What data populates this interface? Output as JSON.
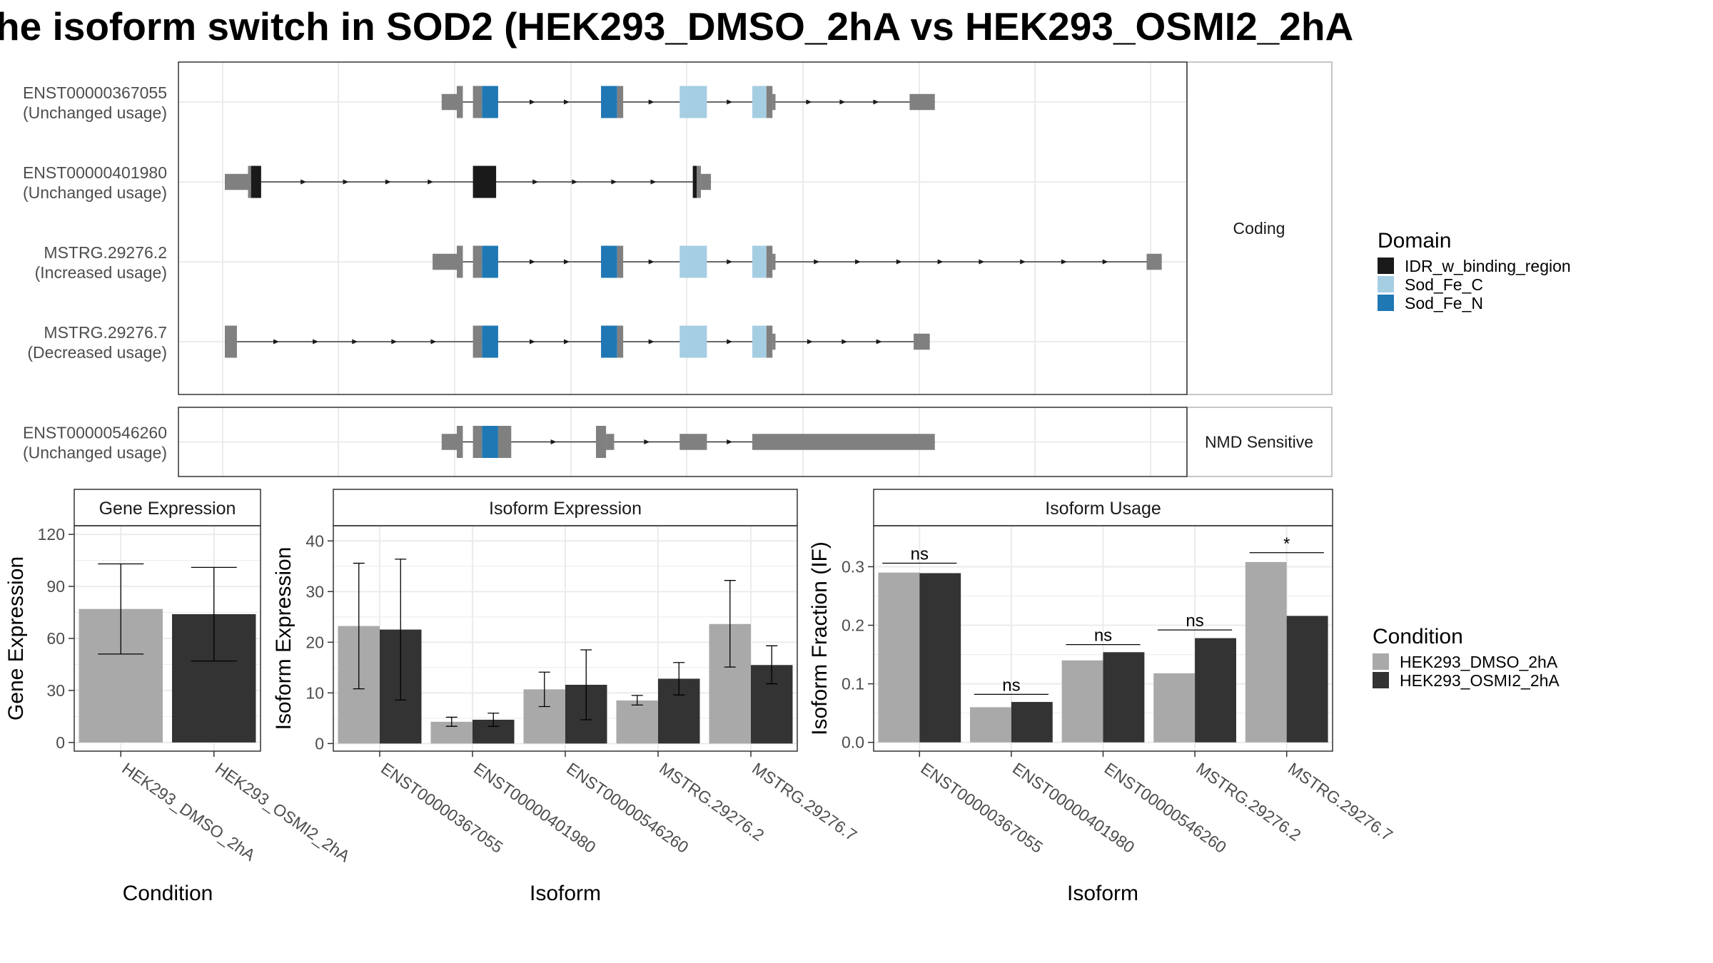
{
  "title": "he isoform switch in SOD2 (HEK293_DMSO_2hA vs HEK293_OSMI2_2hA",
  "colors": {
    "utr": "#808080",
    "IDR_w_binding_region": "#1a1a1a",
    "Sod_Fe_C": "#a6cee3",
    "Sod_Fe_N": "#1f78b4",
    "cond1": "#a9a9a9",
    "cond2": "#333333",
    "grid": "#ebebeb",
    "strip": "#ffffff"
  },
  "icons": {
    "intron_arrow": "arrow-right-icon"
  },
  "transcript_panels": [
    {
      "facet": "Coding",
      "transcripts": [
        {
          "id": "ENST00000367055",
          "usage": "(Unchanged usage)",
          "intron": [
            0.272,
            0.75
          ],
          "exons": [
            [
              0.261,
              0.276,
              "utr",
              0.5
            ],
            [
              0.276,
              0.282,
              "utr",
              1
            ],
            [
              0.292,
              0.301,
              "utr",
              1
            ],
            [
              0.301,
              0.317,
              "Sod_Fe_N",
              1
            ],
            [
              0.419,
              0.435,
              "Sod_Fe_N",
              1
            ],
            [
              0.435,
              0.441,
              "utr",
              1
            ],
            [
              0.497,
              0.524,
              "Sod_Fe_C",
              1
            ],
            [
              0.569,
              0.583,
              "Sod_Fe_C",
              1
            ],
            [
              0.583,
              0.589,
              "utr",
              1
            ],
            [
              0.589,
              0.592,
              "utr",
              0.5
            ],
            [
              0.725,
              0.75,
              "utr",
              0.5
            ]
          ]
        },
        {
          "id": "ENST00000401980",
          "usage": "(Unchanged usage)",
          "intron": [
            0.055,
            0.528
          ],
          "exons": [
            [
              0.046,
              0.069,
              "utr",
              0.5
            ],
            [
              0.069,
              0.072,
              "utr",
              1
            ],
            [
              0.072,
              0.082,
              "IDR_w_binding_region",
              1
            ],
            [
              0.292,
              0.315,
              "IDR_w_binding_region",
              1
            ],
            [
              0.51,
              0.514,
              "IDR_w_binding_region",
              1
            ],
            [
              0.514,
              0.518,
              "utr",
              1
            ],
            [
              0.518,
              0.528,
              "utr",
              0.5
            ]
          ]
        },
        {
          "id": "MSTRG.29276.2",
          "usage": "(Increased usage)",
          "intron": [
            0.265,
            0.975
          ],
          "exons": [
            [
              0.252,
              0.276,
              "utr",
              0.5
            ],
            [
              0.276,
              0.282,
              "utr",
              1
            ],
            [
              0.292,
              0.301,
              "utr",
              1
            ],
            [
              0.301,
              0.317,
              "Sod_Fe_N",
              1
            ],
            [
              0.419,
              0.435,
              "Sod_Fe_N",
              1
            ],
            [
              0.435,
              0.441,
              "utr",
              1
            ],
            [
              0.497,
              0.524,
              "Sod_Fe_C",
              1
            ],
            [
              0.569,
              0.583,
              "Sod_Fe_C",
              1
            ],
            [
              0.583,
              0.589,
              "utr",
              1
            ],
            [
              0.589,
              0.592,
              "utr",
              0.5
            ],
            [
              0.96,
              0.975,
              "utr",
              0.5
            ]
          ]
        },
        {
          "id": "MSTRG.29276.7",
          "usage": "(Decreased usage)",
          "intron": [
            0.05,
            0.745
          ],
          "exons": [
            [
              0.046,
              0.058,
              "utr",
              1
            ],
            [
              0.292,
              0.301,
              "utr",
              1
            ],
            [
              0.301,
              0.317,
              "Sod_Fe_N",
              1
            ],
            [
              0.419,
              0.435,
              "Sod_Fe_N",
              1
            ],
            [
              0.435,
              0.441,
              "utr",
              1
            ],
            [
              0.497,
              0.524,
              "Sod_Fe_C",
              1
            ],
            [
              0.569,
              0.583,
              "Sod_Fe_C",
              1
            ],
            [
              0.583,
              0.589,
              "utr",
              1
            ],
            [
              0.589,
              0.592,
              "utr",
              0.5
            ],
            [
              0.729,
              0.745,
              "utr",
              0.5
            ]
          ]
        }
      ]
    },
    {
      "facet": "NMD Sensitive",
      "transcripts": [
        {
          "id": "ENST00000546260",
          "usage": "(Unchanged usage)",
          "intron": [
            0.272,
            0.75
          ],
          "exons": [
            [
              0.261,
              0.276,
              "utr",
              0.5
            ],
            [
              0.276,
              0.282,
              "utr",
              1
            ],
            [
              0.292,
              0.301,
              "utr",
              1
            ],
            [
              0.301,
              0.317,
              "Sod_Fe_N",
              1
            ],
            [
              0.317,
              0.33,
              "utr",
              1
            ],
            [
              0.414,
              0.424,
              "utr",
              1
            ],
            [
              0.424,
              0.432,
              "utr",
              0.5
            ],
            [
              0.497,
              0.524,
              "utr",
              0.5
            ],
            [
              0.569,
              0.75,
              "utr",
              0.5
            ]
          ]
        }
      ]
    }
  ],
  "domain_legend": {
    "title": "Domain",
    "items": [
      {
        "label": "IDR_w_binding_region",
        "color": "#1a1a1a"
      },
      {
        "label": "Sod_Fe_C",
        "color": "#a6cee3"
      },
      {
        "label": "Sod_Fe_N",
        "color": "#1f78b4"
      }
    ]
  },
  "condition_legend": {
    "title": "Condition",
    "items": [
      {
        "label": "HEK293_DMSO_2hA",
        "color": "#a9a9a9"
      },
      {
        "label": "HEK293_OSMI2_2hA",
        "color": "#333333"
      }
    ]
  },
  "chart_data": [
    {
      "type": "bar",
      "title": "Gene Expression",
      "xlabel": "Condition",
      "ylabel": "Gene Expression",
      "ylim": [
        -5,
        125
      ],
      "yticks": [
        0,
        30,
        60,
        90,
        120
      ],
      "categories": [
        "HEK293_DMSO_2hA",
        "HEK293_OSMI2_2hA"
      ],
      "values": [
        77,
        74
      ],
      "errors": [
        [
          51,
          103
        ],
        [
          47,
          101
        ]
      ]
    },
    {
      "type": "bar",
      "title": "Isoform Expression",
      "xlabel": "Isoform",
      "ylabel": "Isoform Expression",
      "ylim": [
        -1.5,
        43
      ],
      "yticks": [
        0,
        10,
        20,
        30,
        40
      ],
      "categories": [
        "ENST00000367055",
        "ENST00000401980",
        "ENST00000546260",
        "MSTRG.29276.2",
        "MSTRG.29276.7"
      ],
      "series": [
        {
          "name": "HEK293_DMSO_2hA",
          "values": [
            23.2,
            4.3,
            10.7,
            8.5,
            23.6
          ],
          "errors": [
            [
              10.8,
              35.6
            ],
            [
              3.4,
              5.2
            ],
            [
              7.3,
              14.1
            ],
            [
              7.6,
              9.5
            ],
            [
              15.1,
              32.2
            ]
          ]
        },
        {
          "name": "HEK293_OSMI2_2hA",
          "values": [
            22.5,
            4.7,
            11.6,
            12.8,
            15.5
          ],
          "errors": [
            [
              8.6,
              36.4
            ],
            [
              3.4,
              6.0
            ],
            [
              4.7,
              18.5
            ],
            [
              9.6,
              16.0
            ],
            [
              11.8,
              19.3
            ]
          ]
        }
      ]
    },
    {
      "type": "bar",
      "title": "Isoform Usage",
      "xlabel": "Isoform",
      "ylabel": "Isoform Fraction (IF)",
      "ylim": [
        -0.015,
        0.37
      ],
      "yticks": [
        "0.0",
        "0.1",
        "0.2",
        "0.3"
      ],
      "categories": [
        "ENST00000367055",
        "ENST00000401980",
        "ENST00000546260",
        "MSTRG.29276.2",
        "MSTRG.29276.7"
      ],
      "series": [
        {
          "name": "HEK293_DMSO_2hA",
          "values": [
            0.29,
            0.06,
            0.14,
            0.118,
            0.308
          ]
        },
        {
          "name": "HEK293_OSMI2_2hA",
          "values": [
            0.289,
            0.069,
            0.154,
            0.178,
            0.216
          ]
        }
      ],
      "significance": [
        "ns",
        "ns",
        "ns",
        "ns",
        "*"
      ],
      "sig_y": [
        0.306,
        0.082,
        0.167,
        0.192,
        0.324
      ]
    }
  ]
}
